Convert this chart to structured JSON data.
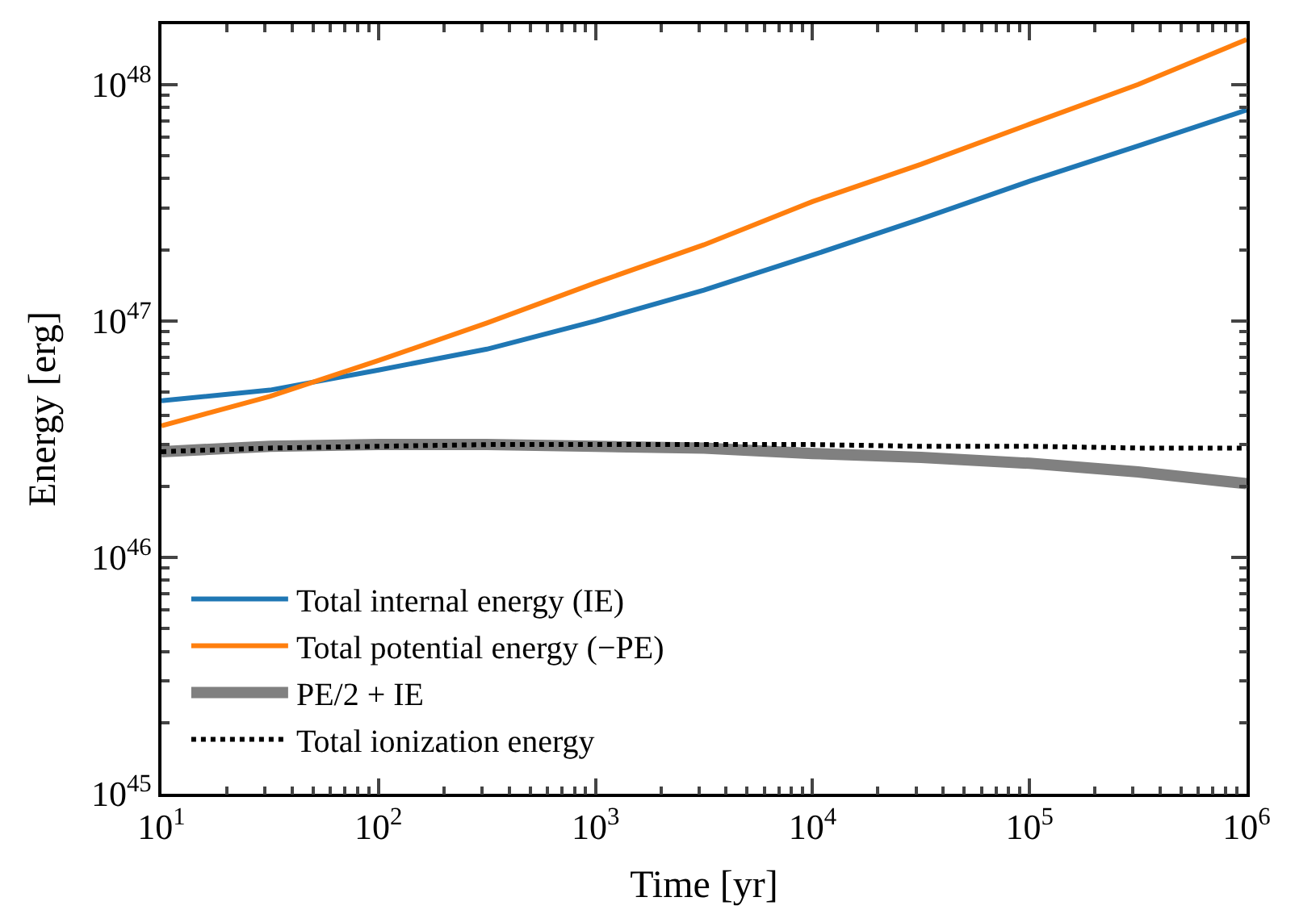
{
  "chart_data": {
    "type": "line",
    "xlabel": "Time [yr]",
    "ylabel": "Energy [erg]",
    "log": "xy",
    "x": [
      10,
      31.6,
      100,
      316,
      1000,
      3162,
      10000,
      31623,
      100000,
      316228,
      1000000
    ],
    "series": [
      {
        "name": "Total internal energy (IE)",
        "color": "#1f77b4",
        "values": [
          4.6e+46,
          5.1e+46,
          6.2e+46,
          7.6e+46,
          1e+47,
          1.35e+47,
          1.9e+47,
          2.7e+47,
          3.9e+47,
          5.5e+47,
          7.8e+47
        ]
      },
      {
        "name": "Total potential energy (−PE)",
        "color": "#ff7f0e",
        "values": [
          3.6e+46,
          4.8e+46,
          6.8e+46,
          9.8e+46,
          1.45e+47,
          2.1e+47,
          3.2e+47,
          4.6e+47,
          6.8e+47,
          1e+48,
          1.55e+48
        ]
      },
      {
        "name": "PE/2 + IE",
        "color": "#808080",
        "values": [
          2.8e+46,
          2.95e+46,
          3e+46,
          3e+46,
          2.95e+46,
          2.9e+46,
          2.75e+46,
          2.65e+46,
          2.5e+46,
          2.3e+46,
          2.05e+46
        ]
      },
      {
        "name": "Total ionization energy",
        "color": "#000000",
        "line_style": "dotted",
        "values": [
          2.8e+46,
          2.9e+46,
          2.95e+46,
          3e+46,
          3e+46,
          3e+46,
          3e+46,
          2.95e+46,
          2.95e+46,
          2.9e+46,
          2.9e+46
        ]
      }
    ],
    "xlim": [
      10,
      1000000
    ],
    "ylim": [
      1e+45,
      1.8e+48
    ],
    "xticks": [
      {
        "value": 10,
        "label": "10$^{1}$"
      },
      {
        "value": 100,
        "label": "10$^{2}$"
      },
      {
        "value": 1000,
        "label": "10$^{3}$"
      },
      {
        "value": 10000,
        "label": "10$^{4}$"
      },
      {
        "value": 100000,
        "label": "10$^{5}$"
      },
      {
        "value": 1000000,
        "label": "10$^{6}$"
      }
    ],
    "yticks": [
      {
        "value": 1e+45,
        "label": "10$^{45}$"
      },
      {
        "value": 1e+46,
        "label": "10$^{46}$"
      },
      {
        "value": 1e+47,
        "label": "10$^{47}$"
      },
      {
        "value": 1e+48,
        "label": "10$^{48}$"
      }
    ],
    "legend": "bottom left",
    "marker": "none"
  }
}
